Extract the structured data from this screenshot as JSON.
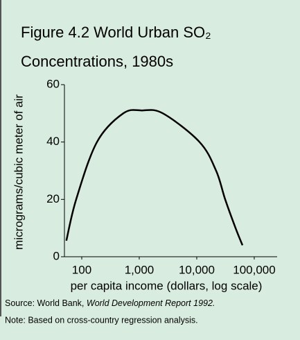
{
  "chart_data": {
    "type": "line",
    "title_lines": [
      "Figure 4.2  World Urban SO₂",
      "Concentrations, 1980s"
    ],
    "y_label": "micrograms/cubic meter of air",
    "x_label": "per capita income (dollars, log scale)",
    "source": {
      "text": "Source: World Bank,",
      "publication": "World Development Report 1992."
    },
    "note": "Note: Based on cross-country regression analysis.",
    "x_log": true,
    "x": [
      54,
      80,
      184,
      528,
      1117,
      2570,
      11170,
      21700,
      31200,
      47300,
      62400
    ],
    "series": [
      {
        "color": "#000000",
        "values": [
          5.6,
          20,
          40,
          50,
          51,
          50,
          40,
          30,
          20,
          10,
          4
        ]
      }
    ],
    "xlim": [
      50,
      250000
    ],
    "xticks": [
      100,
      {
        "value": 1000,
        "label": "1,000"
      },
      {
        "value": 10000,
        "label": "10,000"
      },
      {
        "value": 100000,
        "label": "100,000"
      }
    ],
    "ylim": [
      0,
      60
    ],
    "yticks": [
      0,
      20,
      40,
      60
    ]
  }
}
